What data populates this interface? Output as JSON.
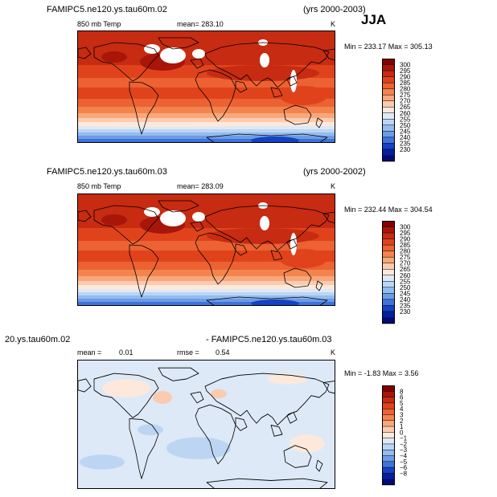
{
  "season": "JJA",
  "chart_data": [
    {
      "type": "heatmap",
      "title": "FAMIPC5.ne120.ys.tau60m.02",
      "years": "(yrs 2000-2003)",
      "variable": "850 mb Temp",
      "mean_label": "mean= 283.10",
      "units": "K",
      "min_max": "Min = 233.17 Max = 305.13",
      "min": 233.17,
      "max": 305.13,
      "mean": 283.1,
      "colorbar_levels": [
        "300",
        "295",
        "290",
        "285",
        "280",
        "275",
        "270",
        "265",
        "260",
        "255",
        "250",
        "245",
        "240",
        "235",
        "230"
      ]
    },
    {
      "type": "heatmap",
      "title": "FAMIPC5.ne120.ys.tau60m.03",
      "years": "(yrs 2000-2002)",
      "variable": "850 mb Temp",
      "mean_label": "mean= 283.09",
      "units": "K",
      "min_max": "Min = 232.44 Max = 304.54",
      "min": 232.44,
      "max": 304.54,
      "mean": 283.09,
      "colorbar_levels": [
        "300",
        "295",
        "290",
        "285",
        "280",
        "275",
        "270",
        "265",
        "260",
        "255",
        "250",
        "245",
        "240",
        "235",
        "230"
      ]
    },
    {
      "type": "heatmap",
      "title_left": "20.ys.tau60m.02",
      "title_right": "- FAMIPC5.ne120.ys.tau60m.03",
      "mean_label": "mean =",
      "mean_value": "0.01",
      "rmse_label": "rmse =",
      "rmse_value": "0.54",
      "units": "K",
      "min_max": "Min = -1.83 Max = 3.56",
      "min": -1.83,
      "max": 3.56,
      "mean": 0.01,
      "rmse": 0.54,
      "colorbar_levels": [
        "8",
        "6",
        "5",
        "4",
        "3",
        "2",
        "1",
        "0",
        "−1",
        "−2",
        "−3",
        "−4",
        "−5",
        "−6",
        "−8"
      ]
    }
  ],
  "colors": {
    "abs_scale": [
      "#840000",
      "#a81609",
      "#c72b12",
      "#e0431c",
      "#ec6233",
      "#f3844f",
      "#f8a77a",
      "#fbcbaf",
      "#fde8dc",
      "#dde9f7",
      "#bcd5f3",
      "#94bbee",
      "#6b9ce6",
      "#3f73db",
      "#1541c4",
      "#05209a",
      "#030a74"
    ],
    "diff_scale": [
      "#840000",
      "#a81609",
      "#c72b12",
      "#e0431c",
      "#ec6233",
      "#f3844f",
      "#f8a77a",
      "#fbcbaf",
      "#fde8dc",
      "#dde9f7",
      "#bcd5f3",
      "#94bbee",
      "#6b9ce6",
      "#3f73db",
      "#1541c4",
      "#05209a",
      "#030a74"
    ],
    "land_missing": "#ffffff",
    "coast": "#000000"
  }
}
